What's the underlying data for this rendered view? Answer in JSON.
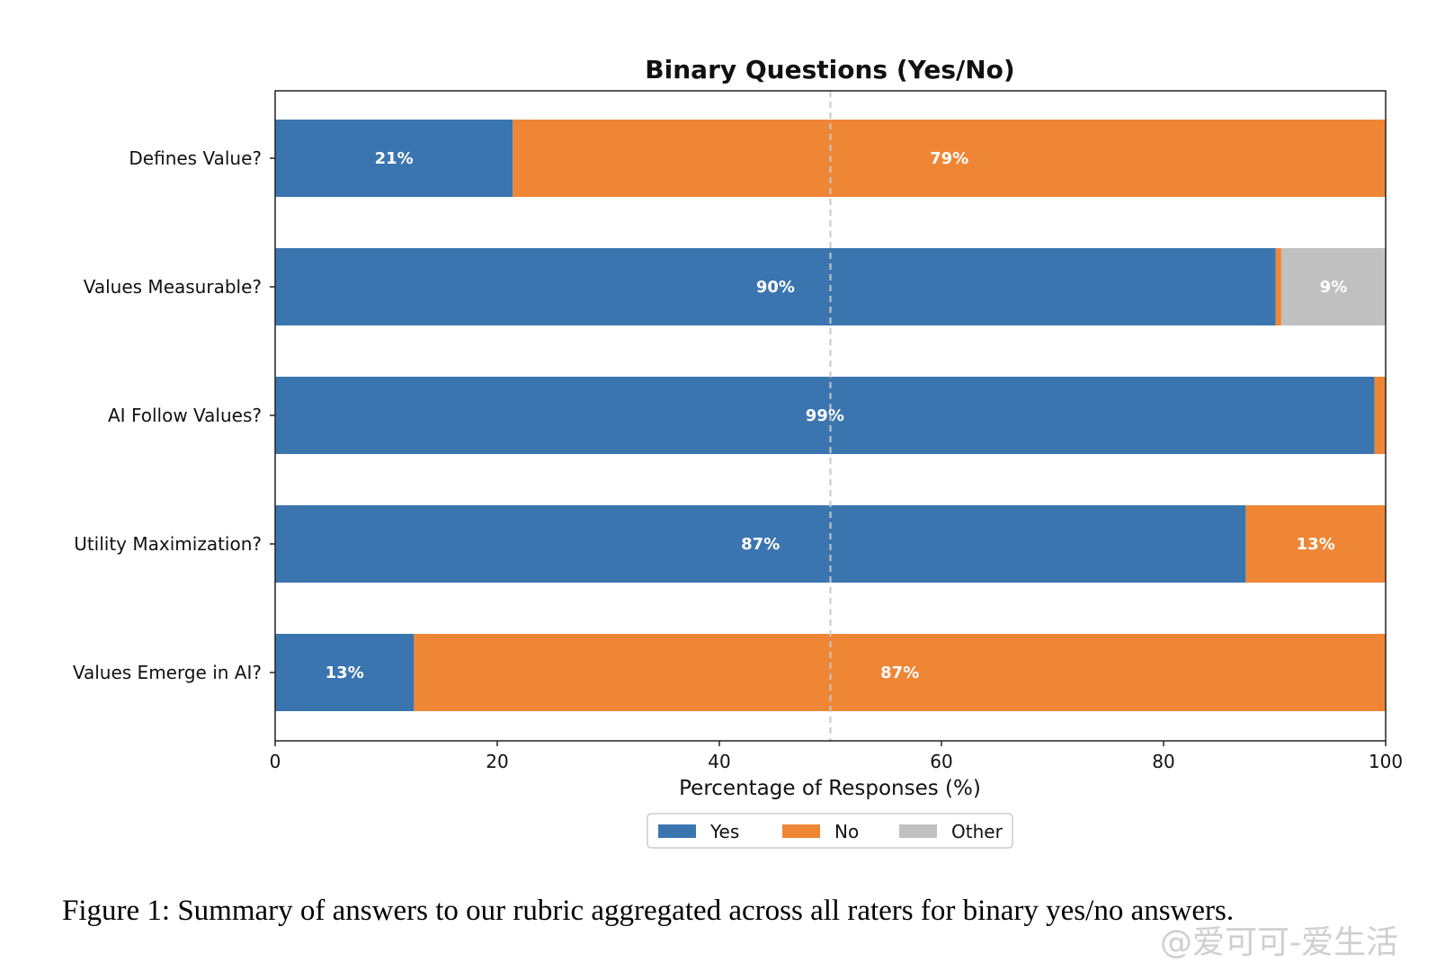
{
  "chart_data": {
    "type": "bar",
    "orientation": "horizontal",
    "stacked": true,
    "title": "Binary Questions (Yes/No)",
    "xlabel": "Percentage of Responses (%)",
    "ylabel": "",
    "xlim": [
      0,
      100
    ],
    "xticks": [
      0,
      20,
      40,
      60,
      80,
      100
    ],
    "reference_line": {
      "x": 50,
      "style": "dashed"
    },
    "grid": false,
    "legend_position": "bottom-center",
    "categories": [
      "Defines Value?",
      "Values Measurable?",
      "AI Follow Values?",
      "Utility Maximization?",
      "Values Emerge in AI?"
    ],
    "series": [
      {
        "name": "Yes",
        "color": "#3b75af",
        "values": [
          21.4,
          90.1,
          99.0,
          87.4,
          12.5
        ],
        "labels": [
          "21%",
          "90%",
          "99%",
          "87%",
          "13%"
        ]
      },
      {
        "name": "No",
        "color": "#ef8636",
        "values": [
          78.6,
          0.5,
          1.0,
          12.6,
          87.5
        ],
        "labels": [
          "79%",
          "",
          "",
          "13%",
          "87%"
        ]
      },
      {
        "name": "Other",
        "color": "#c0c0c0",
        "values": [
          0,
          9.4,
          0,
          0,
          0
        ],
        "labels": [
          "",
          "9%",
          "",
          "",
          ""
        ]
      }
    ]
  },
  "caption": "Figure 1: Summary of answers to our rubric aggregated across all raters for binary yes/no answers.",
  "watermark": "@爱可可-爱生活"
}
